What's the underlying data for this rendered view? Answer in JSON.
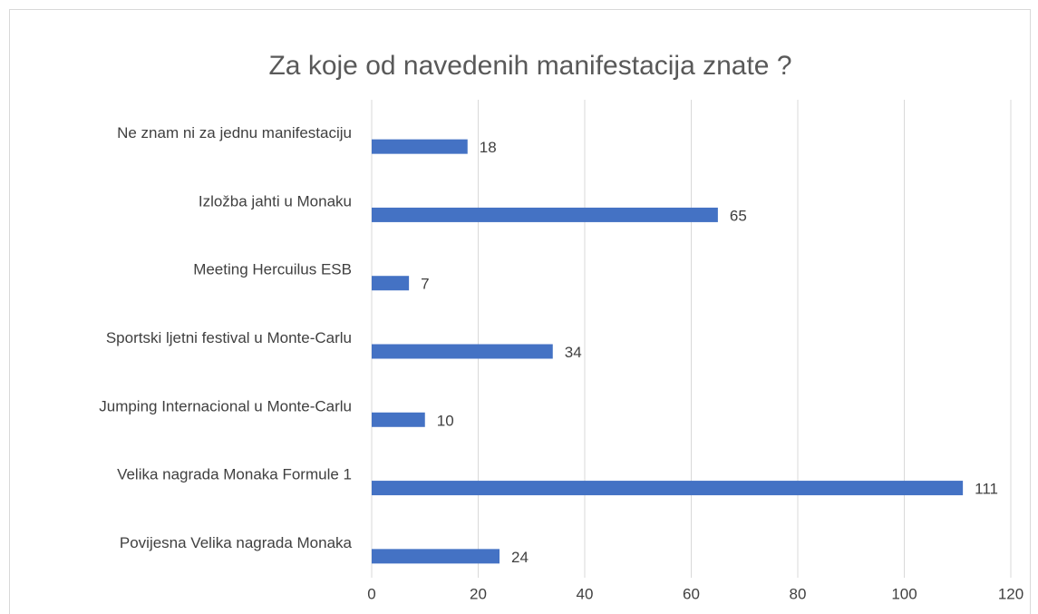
{
  "chart_data": {
    "type": "bar",
    "orientation": "horizontal",
    "title": "Za koje od navedenih manifestacija znate ?",
    "categories": [
      "Ne znam ni za jednu manifestaciju",
      "Izložba jahti u Monaku",
      "Meeting Hercuilus ESB",
      "Sportski ljetni festival u Monte-Carlu",
      "Jumping Internacional u Monte-Carlu",
      "Velika nagrada Monaka Formule 1",
      "Povijesna Velika nagrada Monaka"
    ],
    "values": [
      18,
      65,
      7,
      34,
      10,
      111,
      24
    ],
    "color": "#4472c4",
    "xlim": [
      0,
      120
    ],
    "xticks": [
      0,
      20,
      40,
      60,
      80,
      100,
      120
    ],
    "grid": true
  }
}
